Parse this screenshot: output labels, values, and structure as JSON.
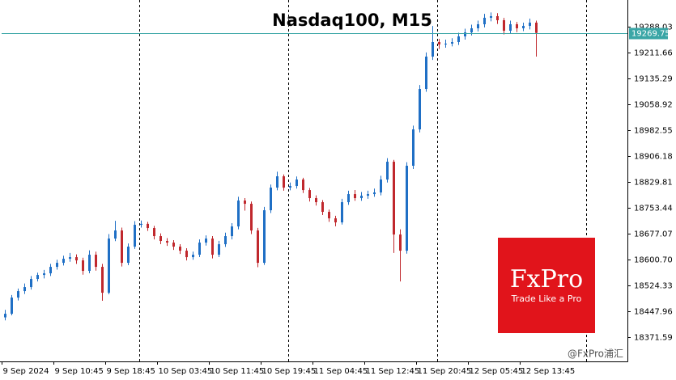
{
  "chart_data": {
    "type": "candlestick",
    "title": "Nasdaq100, M15",
    "up_color": "#1f6fc5",
    "down_color": "#c0282d",
    "price_line_color": "#3aa6a6",
    "xlim": [
      0,
      96.6
    ],
    "ylim": [
      18300,
      19366.8
    ],
    "xticks": [
      {
        "value": 0,
        "label": "9 Sep 2024"
      },
      {
        "value": 8,
        "label": "9 Sep 10:45"
      },
      {
        "value": 16,
        "label": "9 Sep 18:45"
      },
      {
        "value": 24,
        "label": "10 Sep 03:45"
      },
      {
        "value": 32,
        "label": "10 Sep 11:45"
      },
      {
        "value": 40,
        "label": "10 Sep 19:45"
      },
      {
        "value": 48,
        "label": "11 Sep 04:45"
      },
      {
        "value": 56,
        "label": "11 Sep 12:45"
      },
      {
        "value": 64,
        "label": "11 Sep 20:45"
      },
      {
        "value": 72,
        "label": "12 Sep 05:45"
      },
      {
        "value": 80,
        "label": "12 Sep 13:45"
      }
    ],
    "yticks": [
      19288.03,
      19211.66,
      19135.29,
      19058.92,
      18982.55,
      18906.18,
      18829.81,
      18753.44,
      18677.07,
      {
        "value": 18600.7,
        "label": "18600.70"
      },
      18524.33,
      18447.96,
      18371.59
    ],
    "last_price": 19269.75,
    "open": [
      18430.0,
      18440.6,
      18488.4,
      18507.5,
      18519.4,
      18543.3,
      18555.2,
      18560.0,
      18579.1,
      18591.0,
      18603.0,
      18607.7,
      18598.2,
      18567.2,
      18614.9,
      18579.1,
      18502.7,
      18662.6,
      18686.5,
      18591.0,
      18638.8,
      18703.2,
      18706.0,
      18693.7,
      18669.8,
      18655.5,
      18650.7,
      18638.8,
      18626.8,
      18607.7,
      18614.9,
      18650.7,
      18662.6,
      18614.9,
      18645.9,
      18669.8,
      18698.4,
      18774.8,
      18765.3,
      18686.5,
      18591.0,
      18746.2,
      18813.0,
      18846.4,
      18813.0,
      18817.8,
      18836.9,
      18805.8,
      18782.0,
      18770.0,
      18741.4,
      18722.3,
      18710.4,
      18770.0,
      18793.9,
      18782.0,
      18789.1,
      18793.9,
      18798.7,
      18836.9,
      18889.4,
      18674.6,
      18626.8,
      18877.5,
      18984.9,
      19104.2,
      19199.7,
      19242.7,
      19235.5,
      19238.0,
      19242.7,
      19259.4,
      19271.3,
      19283.3,
      19295.2,
      19314.3,
      19319.1,
      19307.1,
      19276.1,
      19295.2,
      19283.3,
      19290.4,
      19300.0
    ],
    "high": [
      18452,
      18496,
      18515,
      18530,
      18552,
      18562,
      18570,
      18588,
      18600,
      18612,
      18620,
      18616,
      18606,
      18628,
      18624,
      18588,
      18676,
      18715,
      18695,
      18648,
      18714,
      18716,
      18712,
      18700,
      18678,
      18664,
      18658,
      18646,
      18634,
      18624,
      18660,
      18672,
      18670,
      18656,
      18680,
      18708,
      18786,
      18782,
      18772,
      18694,
      18756,
      18822,
      18860,
      18852,
      18828,
      18846,
      18842,
      18812,
      18790,
      18776,
      18748,
      18730,
      18780,
      18804,
      18806,
      18800,
      18804,
      18810,
      18848,
      18900,
      18895,
      18690,
      18888,
      18996,
      19116,
      19212,
      19290,
      19252,
      19250,
      19254,
      19270,
      19282,
      19294,
      19306,
      19326,
      19330,
      19328,
      19314,
      19306,
      19302,
      19300,
      19312,
      19306
    ],
    "low": [
      18421,
      18436,
      18480,
      18499,
      18512,
      18536,
      18545,
      18552,
      18571,
      18583,
      18594,
      18588,
      18556,
      18560,
      18568,
      18479,
      18498,
      18655,
      18580,
      18584,
      18632,
      18695,
      18685,
      18660,
      18646,
      18641,
      18629,
      18617,
      18598,
      18600,
      18608,
      18642,
      18604,
      18608,
      18638,
      18660,
      18690,
      18745,
      18676,
      18578,
      18585,
      18738,
      18805,
      18804,
      18805,
      18810,
      18797,
      18772,
      18760,
      18732,
      18712,
      18699,
      18704,
      18762,
      18774,
      18774,
      18780,
      18786,
      18790,
      18828,
      18620,
      18536,
      18618,
      18868,
      18976,
      19096,
      19190,
      19222,
      19226,
      19230,
      19234,
      19250,
      19262,
      19274,
      19286,
      19304,
      19296,
      19265,
      19268,
      19272,
      19275,
      19280,
      19199.7
    ],
    "close": [
      18440.6,
      18488.4,
      18507.5,
      18519.4,
      18543.3,
      18555.2,
      18560.0,
      18579.1,
      18591.0,
      18603.0,
      18607.7,
      18598.2,
      18567.2,
      18614.9,
      18579.1,
      18502.7,
      18662.6,
      18686.5,
      18591.0,
      18638.8,
      18703.2,
      18706.0,
      18693.7,
      18669.8,
      18655.5,
      18650.7,
      18638.8,
      18626.8,
      18607.7,
      18614.9,
      18650.7,
      18662.6,
      18614.9,
      18645.9,
      18669.8,
      18698.4,
      18774.8,
      18765.3,
      18686.5,
      18591.0,
      18746.2,
      18813.0,
      18846.4,
      18813.0,
      18817.8,
      18836.9,
      18805.8,
      18782.0,
      18770.0,
      18741.4,
      18722.3,
      18710.4,
      18770.0,
      18793.9,
      18782.0,
      18789.1,
      18793.9,
      18798.7,
      18836.9,
      18889.4,
      18674.6,
      18626.8,
      18877.5,
      18984.9,
      19104.2,
      19199.7,
      19242.7,
      19235.5,
      19238.0,
      19242.7,
      19259.4,
      19271.3,
      19283.3,
      19295.2,
      19314.3,
      19319.1,
      19307.1,
      19276.1,
      19295.2,
      19283.3,
      19290.4,
      19300.0,
      19269.75
    ]
  },
  "logo": {
    "brand": "FxPro",
    "tagline": "Trade Like a Pro"
  },
  "watermark": "@FxPro浦汇"
}
